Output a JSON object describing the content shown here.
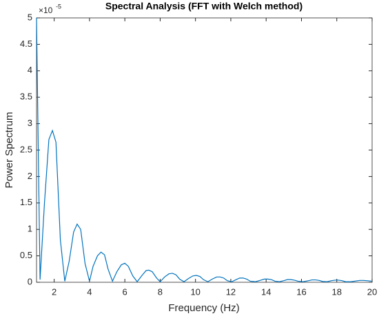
{
  "chart_data": {
    "type": "line",
    "title": "Spectral Analysis (FFT with Welch method)",
    "x_label": "Frequency (Hz)",
    "y_label": "Power Spectrum",
    "y_multiplier": {
      "base": "×10",
      "exponent": "-5"
    },
    "xlim": [
      1,
      20
    ],
    "xticks": [
      2,
      4,
      6,
      8,
      10,
      12,
      14,
      16,
      18,
      20
    ],
    "ylim": [
      0,
      5
    ],
    "yticks": [
      0,
      0.5,
      1,
      1.5,
      2,
      2.5,
      3,
      3.5,
      4,
      4.5,
      5
    ],
    "x": [
      1,
      1.1,
      1.2,
      1.45,
      1.7,
      1.9,
      2.1,
      2.35,
      2.6,
      2.85,
      3.1,
      3.3,
      3.5,
      3.75,
      4.0,
      4.2,
      4.45,
      4.65,
      4.85,
      5.05,
      5.3,
      5.55,
      5.8,
      6.0,
      6.2,
      6.45,
      6.7,
      6.95,
      7.2,
      7.35,
      7.55,
      7.8,
      8.0,
      8.25,
      8.5,
      8.7,
      8.9,
      9.1,
      9.35,
      9.6,
      9.85,
      10.05,
      10.25,
      10.45,
      10.7,
      10.95,
      11.2,
      11.4,
      11.6,
      11.8,
      12.05,
      12.3,
      12.5,
      12.7,
      12.9,
      13.1,
      13.4,
      13.7,
      13.9,
      14.1,
      14.3,
      14.5,
      14.75,
      15.0,
      15.2,
      15.4,
      15.6,
      15.8,
      16.1,
      16.4,
      16.6,
      16.8,
      17.0,
      17.2,
      17.45,
      17.7,
      17.9,
      18.1,
      18.3,
      18.5,
      18.8,
      19.1,
      19.3,
      19.5,
      19.7,
      20
    ],
    "series": [
      {
        "color": "#0072bd",
        "values": [
          5,
          2.5,
          0.05,
          1.5,
          2.7,
          2.87,
          2.65,
          0.8,
          0.02,
          0.4,
          0.95,
          1.1,
          1.0,
          0.35,
          0.02,
          0.3,
          0.5,
          0.57,
          0.52,
          0.25,
          0.02,
          0.2,
          0.33,
          0.36,
          0.3,
          0.12,
          0.01,
          0.12,
          0.22,
          0.23,
          0.2,
          0.08,
          0.01,
          0.1,
          0.16,
          0.17,
          0.14,
          0.06,
          0.01,
          0.07,
          0.12,
          0.13,
          0.11,
          0.05,
          0.01,
          0.06,
          0.1,
          0.1,
          0.08,
          0.03,
          0.01,
          0.05,
          0.08,
          0.08,
          0.06,
          0.02,
          0.01,
          0.04,
          0.06,
          0.06,
          0.05,
          0.02,
          0.01,
          0.03,
          0.05,
          0.05,
          0.04,
          0.02,
          0.01,
          0.03,
          0.045,
          0.045,
          0.035,
          0.015,
          0.01,
          0.03,
          0.04,
          0.04,
          0.03,
          0.01,
          0.01,
          0.025,
          0.035,
          0.035,
          0.03,
          0.02
        ]
      }
    ]
  }
}
